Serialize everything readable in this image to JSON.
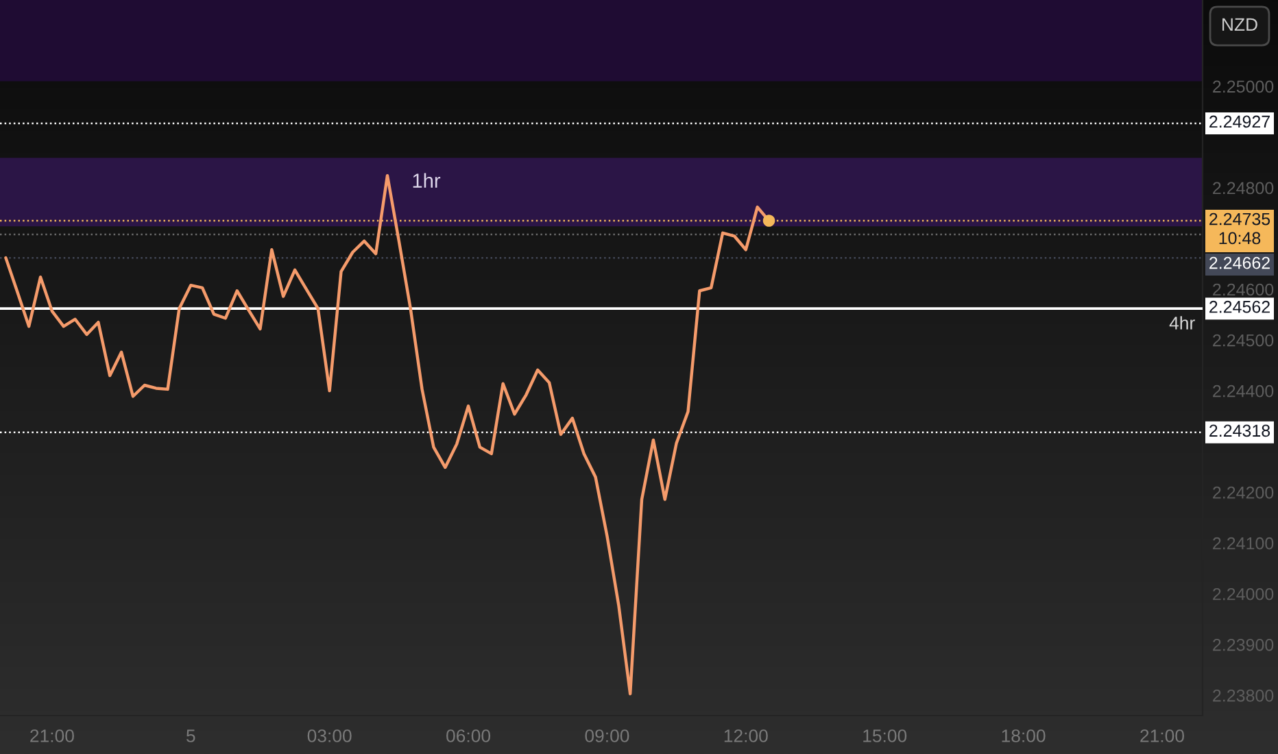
{
  "chart_data": {
    "type": "line",
    "ylabel": "NZD",
    "categories": [
      null,
      null,
      null,
      null,
      "21:00",
      null,
      null,
      null,
      null,
      null,
      null,
      null,
      null,
      null,
      null,
      null,
      "5",
      null,
      null,
      null,
      null,
      null,
      null,
      null,
      null,
      null,
      null,
      null,
      "03:00",
      null,
      null,
      null,
      null,
      null,
      null,
      null,
      null,
      null,
      null,
      null,
      "06:00",
      null,
      null,
      null,
      null,
      null,
      null,
      null,
      null,
      null,
      null,
      null,
      "09:00",
      null,
      null,
      null,
      null,
      null,
      null,
      null,
      null,
      null,
      null,
      null,
      "12:00",
      null,
      null,
      null,
      null,
      null,
      null,
      null,
      null,
      null,
      null,
      null,
      "15:00",
      null,
      null,
      null,
      null,
      null,
      null,
      null,
      null,
      null,
      null,
      null,
      "18:00",
      null,
      null,
      null,
      null,
      null,
      null,
      null,
      null,
      null,
      null,
      null,
      "21:00",
      null,
      null,
      null
    ],
    "ylim": [
      2.2376,
      2.2517
    ],
    "yticks": [
      {
        "value": 2.25,
        "label": "2.25000"
      },
      {
        "value": 2.248,
        "label": "2.24800"
      },
      {
        "value": 2.246,
        "label": "2.24600"
      },
      {
        "value": 2.245,
        "label": "2.24500"
      },
      {
        "value": 2.244,
        "label": "2.24400"
      },
      {
        "value": 2.242,
        "label": "2.24200"
      },
      {
        "value": 2.241,
        "label": "2.24100"
      },
      {
        "value": 2.24,
        "label": "2.24000"
      },
      {
        "value": 2.239,
        "label": "2.23900"
      },
      {
        "value": 2.238,
        "label": "2.23800"
      }
    ],
    "series": [
      {
        "color": "#f59b6b",
        "values": [
          2.24662,
          2.24595,
          2.24527,
          2.24624,
          2.24557,
          2.24527,
          2.24541,
          2.24511,
          2.24535,
          2.2443,
          2.24476,
          2.24389,
          2.24411,
          2.24405,
          2.24403,
          2.24562,
          2.24608,
          2.24603,
          2.24551,
          2.24543,
          2.24597,
          2.24559,
          2.24522,
          2.24678,
          2.24586,
          2.24638,
          2.246,
          2.24562,
          2.244,
          2.24635,
          2.24673,
          2.24695,
          2.2467,
          2.24824,
          2.24695,
          2.24562,
          2.24403,
          2.24289,
          2.24249,
          2.24295,
          2.2437,
          2.24289,
          2.24276,
          2.24414,
          2.24354,
          2.24392,
          2.24441,
          2.24416,
          2.24314,
          2.24346,
          2.24276,
          2.2423,
          2.24114,
          2.23978,
          2.23803,
          2.24186,
          2.24303,
          2.24186,
          2.24297,
          2.24359,
          2.24597,
          2.24603,
          2.24711,
          2.24705,
          2.24678,
          2.24762,
          2.24735,
          null,
          null,
          null,
          null,
          null,
          null,
          null,
          null,
          null,
          null,
          null,
          null,
          null,
          null,
          null,
          null,
          null,
          null,
          null,
          null,
          null,
          null,
          null,
          null,
          null,
          null,
          null,
          null,
          null,
          null,
          null,
          null,
          null,
          null,
          null,
          null,
          null
        ]
      },
      {
        "type": "scatter",
        "color": "#f5b85a",
        "marker": "circle",
        "values": [
          null,
          null,
          null,
          null,
          null,
          null,
          null,
          null,
          null,
          null,
          null,
          null,
          null,
          null,
          null,
          null,
          null,
          null,
          null,
          null,
          null,
          null,
          null,
          null,
          null,
          null,
          null,
          null,
          null,
          null,
          null,
          null,
          null,
          null,
          null,
          null,
          null,
          null,
          null,
          null,
          null,
          null,
          null,
          null,
          null,
          null,
          null,
          null,
          null,
          null,
          null,
          null,
          null,
          null,
          null,
          null,
          null,
          null,
          null,
          null,
          null,
          null,
          null,
          null,
          null,
          null,
          2.24735,
          null,
          null,
          null,
          null,
          null,
          null,
          null,
          null,
          null,
          null,
          null,
          null,
          null,
          null,
          null,
          null,
          null,
          null,
          null,
          null,
          null,
          null,
          null,
          null,
          null,
          null,
          null,
          null,
          null,
          null,
          null,
          null,
          null,
          null,
          null,
          null,
          null
        ]
      }
    ],
    "bands": [
      {
        "axis": "y",
        "from": 2.2501,
        "to": 2.2517,
        "color": "#1f0c33"
      },
      {
        "axis": "y",
        "from": 2.24724,
        "to": 2.24859,
        "label": "1hr",
        "color": "#2b1546"
      }
    ],
    "ref_lines": [
      {
        "axis": "y",
        "value": 2.24562,
        "label": "2.24562",
        "color": "#ffffff",
        "line_style": "solid"
      },
      {
        "axis": "y",
        "value": 2.24735,
        "label": "2.24735\n10:48",
        "color": "#f5b85a",
        "line_style": "dotted"
      },
      {
        "axis": "y",
        "value": 2.24708,
        "color": "#6b6b6b",
        "line_style": "dotted"
      },
      {
        "axis": "y",
        "value": 2.24927,
        "label": "2.24927",
        "color": "#ffffff",
        "line_style": "dotted"
      },
      {
        "axis": "y",
        "value": 2.24662,
        "label": "2.24662",
        "color": "#434857",
        "line_style": "dotted"
      },
      {
        "axis": "y",
        "value": 2.24318,
        "label": "2.24318",
        "color": "#ffffff",
        "line_style": "dotted"
      }
    ],
    "annotations": [
      {
        "text": "4hr",
        "y": 2.24562
      }
    ]
  }
}
